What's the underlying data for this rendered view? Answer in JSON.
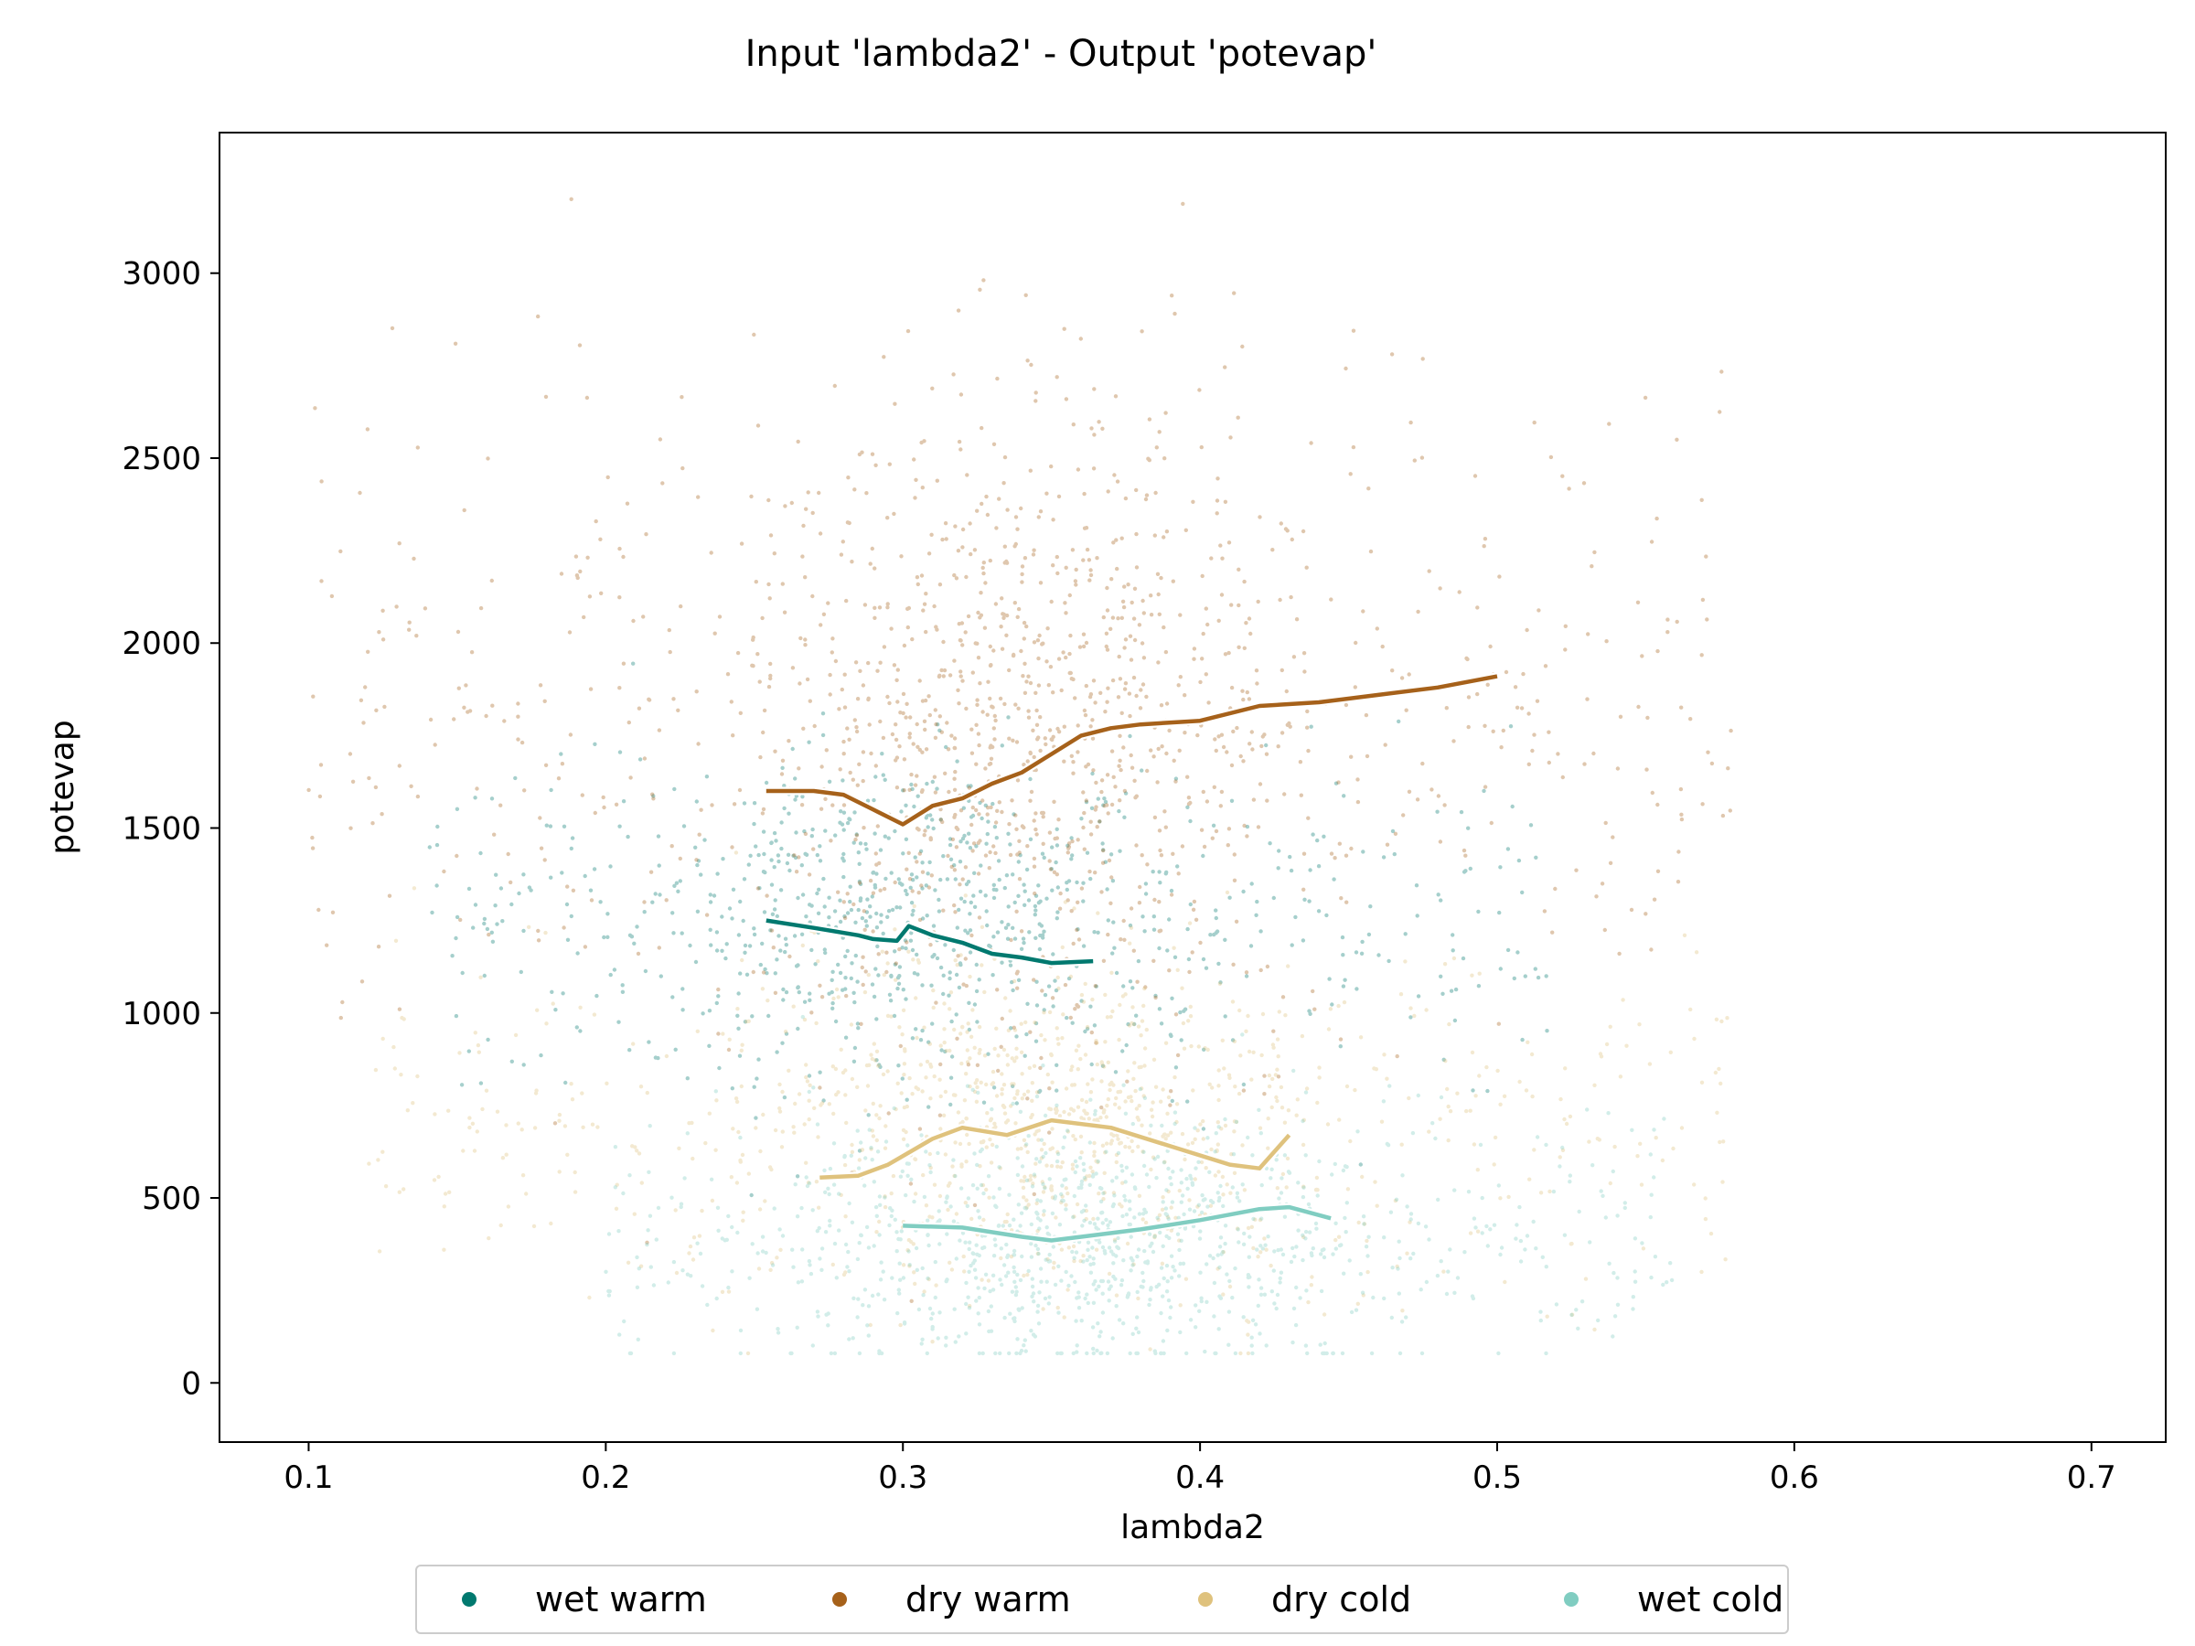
{
  "chart_data": {
    "type": "scatter",
    "title": "Input 'lambda2' - Output 'potevap'",
    "xlabel": "lambda2",
    "ylabel": "potevap",
    "xlim": [
      0.07,
      0.725
    ],
    "ylim": [
      -160,
      3380
    ],
    "xticks": [
      0.1,
      0.2,
      0.3,
      0.4,
      0.5,
      0.6,
      0.7
    ],
    "xtick_labels": [
      "0.1",
      "0.2",
      "0.3",
      "0.4",
      "0.5",
      "0.6",
      "0.7"
    ],
    "yticks": [
      0,
      500,
      1000,
      1500,
      2000,
      2500,
      3000
    ],
    "ytick_labels": [
      "0",
      "500",
      "1000",
      "1500",
      "2000",
      "2500",
      "3000"
    ],
    "grid": false,
    "legend_position": "bottom-center-outside",
    "series": [
      {
        "name": "wet warm",
        "color": "#01796f",
        "point_cloud": {
          "x_range": [
            0.14,
            0.52
          ],
          "x_center": 0.3,
          "y_center": 1250,
          "y_spread": 220,
          "count": 900
        },
        "trend": {
          "x": [
            0.254,
            0.27,
            0.285,
            0.29,
            0.298,
            0.302,
            0.31,
            0.32,
            0.33,
            0.34,
            0.35,
            0.364
          ],
          "y": [
            1250,
            1230,
            1210,
            1200,
            1195,
            1235,
            1210,
            1190,
            1160,
            1150,
            1135,
            1140
          ]
        }
      },
      {
        "name": "dry warm",
        "color": "#a6611a",
        "point_cloud": {
          "x_range": [
            0.1,
            0.58
          ],
          "x_center": 0.34,
          "y_center": 1800,
          "y_spread": 420,
          "count": 1400
        },
        "trend": {
          "x": [
            0.254,
            0.27,
            0.28,
            0.29,
            0.3,
            0.31,
            0.32,
            0.33,
            0.34,
            0.35,
            0.36,
            0.37,
            0.38,
            0.4,
            0.42,
            0.44,
            0.46,
            0.48,
            0.5
          ],
          "y": [
            1600,
            1600,
            1590,
            1550,
            1510,
            1560,
            1580,
            1620,
            1650,
            1700,
            1750,
            1770,
            1780,
            1790,
            1830,
            1840,
            1860,
            1880,
            1910
          ]
        }
      },
      {
        "name": "dry cold",
        "color": "#dfc27d",
        "point_cloud": {
          "x_range": [
            0.12,
            0.58
          ],
          "x_center": 0.35,
          "y_center": 700,
          "y_spread": 230,
          "count": 1100
        },
        "trend": {
          "x": [
            0.272,
            0.285,
            0.295,
            0.31,
            0.32,
            0.335,
            0.35,
            0.37,
            0.39,
            0.41,
            0.42,
            0.43
          ],
          "y": [
            555,
            560,
            590,
            660,
            690,
            670,
            710,
            690,
            640,
            590,
            580,
            670
          ]
        }
      },
      {
        "name": "wet cold",
        "color": "#80cdc1",
        "point_cloud": {
          "x_range": [
            0.2,
            0.56
          ],
          "x_center": 0.36,
          "y_center": 380,
          "y_spread": 170,
          "count": 1100
        },
        "trend": {
          "x": [
            0.3,
            0.32,
            0.34,
            0.35,
            0.36,
            0.38,
            0.4,
            0.42,
            0.43,
            0.444
          ],
          "y": [
            425,
            420,
            395,
            385,
            395,
            415,
            440,
            470,
            475,
            445
          ]
        }
      }
    ]
  }
}
